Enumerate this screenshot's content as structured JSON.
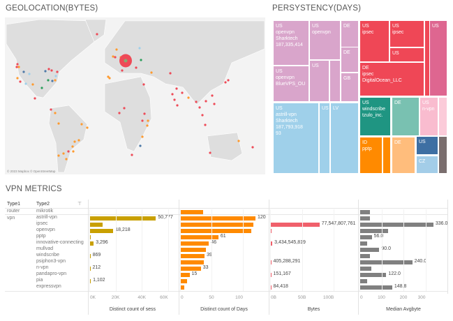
{
  "geolocation": {
    "title": "GEOLOCATION(BYTES)",
    "attribution": "© 2023 Mapbox © OpenStreetMap",
    "colors": {
      "land": "#dedede",
      "water": "#f3f3f3",
      "highlight": "#ee4a57"
    }
  },
  "persistency": {
    "title": "PERSYSTENCY(DAYS)",
    "cells": [
      {
        "label": "US\nopenvpn\nSharktech\n187,335,414",
        "color": "#d9a5cb"
      },
      {
        "label": "US\nopenvpn",
        "color": "#d9a5cb"
      },
      {
        "label": "DE",
        "color": "#d9a5cb"
      },
      {
        "label": "DE",
        "color": "#d9a5cb"
      },
      {
        "label": "GB",
        "color": "#d9a5cb"
      },
      {
        "label": "US\nopenvpn\nBlueVPS_OU",
        "color": "#d9a5cb"
      },
      {
        "label": "US",
        "color": "#d9a5cb"
      },
      {
        "label": "",
        "color": "#d9a5cb"
      },
      {
        "label": "US\nastrill-vpn\nSharktech\n187,793,918\n93",
        "color": "#9fd0ea"
      },
      {
        "label": "US",
        "color": "#9fd0ea"
      },
      {
        "label": "LV",
        "color": "#9fd0ea"
      },
      {
        "label": "US\nipsec",
        "color": "#ef4756"
      },
      {
        "label": "US\nipsec",
        "color": "#ef4756"
      },
      {
        "label": "US",
        "color": "#ef4756"
      },
      {
        "label": "DE\nipsec\nDigitalOcean_LLC",
        "color": "#ef4756"
      },
      {
        "label": "",
        "color": "#ef4756"
      },
      {
        "label": "US",
        "color": "#de6690"
      },
      {
        "label": "US\nwindscribe\ntzulo_inc.",
        "color": "#1f9582"
      },
      {
        "label": "DE",
        "color": "#79c1b1"
      },
      {
        "label": "US\nn-vpn",
        "color": "#f9bccf"
      },
      {
        "label": "",
        "color": "#fbcbd9"
      },
      {
        "label": "ID\npptp",
        "color": "#ff8a00"
      },
      {
        "label": "",
        "color": "#ff8a00"
      },
      {
        "label": "DE",
        "color": "#ffbd7c"
      },
      {
        "label": "US",
        "color": "#3e6fa3"
      },
      {
        "label": "CZ",
        "color": "#a3cde8"
      },
      {
        "label": "",
        "color": "#7a6e6e"
      }
    ]
  },
  "vpn_metrics": {
    "title": "VPN METRICS",
    "headers": {
      "type1": "Type1",
      "type2": "Type2"
    },
    "type1_groups": [
      "router",
      "vpn"
    ],
    "rows": [
      {
        "type2": "mikrotik",
        "sess": null,
        "sess_label": null,
        "days": 37,
        "days_label": null,
        "bytes": null,
        "bytes_label": null,
        "median": 48,
        "median_label": null
      },
      {
        "type2": "astrill-vpn",
        "sess": 50777,
        "sess_label": "50,777",
        "days": 120,
        "days_label": "120",
        "bytes": null,
        "bytes_label": null,
        "median": 48,
        "median_label": null
      },
      {
        "type2": "ipsec",
        "sess": 10000,
        "sess_label": null,
        "days": 117,
        "days_label": null,
        "bytes": 77.547807761,
        "bytes_label": "77,547,807,761",
        "median": 336.0,
        "median_label": "336.0"
      },
      {
        "type2": "openvpn",
        "sess": 18218,
        "sess_label": "18,218",
        "days": 113,
        "days_label": null,
        "bytes": 0.3,
        "bytes_label": null,
        "median": 130,
        "median_label": null
      },
      {
        "type2": "pptp",
        "sess": 300,
        "sess_label": null,
        "days": 61,
        "days_label": "61",
        "bytes": null,
        "bytes_label": null,
        "median": 56.0,
        "median_label": "56.0"
      },
      {
        "type2": "innovative-connecting",
        "sess": 3296,
        "sess_label": "3,296",
        "days": 46,
        "days_label": "46",
        "bytes": 3.434545819,
        "bytes_label": "3,434,545,819",
        "median": 36,
        "median_label": null
      },
      {
        "type2": "mullvad",
        "sess": null,
        "sess_label": null,
        "days": 41,
        "days_label": null,
        "bytes": null,
        "bytes_label": null,
        "median": 90.0,
        "median_label": "90.0"
      },
      {
        "type2": "windscribe",
        "sess": 869,
        "sess_label": "869",
        "days": 39,
        "days_label": "39",
        "bytes": null,
        "bytes_label": null,
        "median": 48,
        "median_label": null
      },
      {
        "type2": "psiphon3-vpn",
        "sess": null,
        "sess_label": null,
        "days": 38,
        "days_label": null,
        "bytes": 0.405288291,
        "bytes_label": "405,288,291",
        "median": 240.0,
        "median_label": "240.0"
      },
      {
        "type2": "n-vpn",
        "sess": 212,
        "sess_label": "212",
        "days": 33,
        "days_label": "33",
        "bytes": null,
        "bytes_label": null,
        "median": 55,
        "median_label": null
      },
      {
        "type2": "pandapro-vpn",
        "sess": null,
        "sess_label": null,
        "days": 15,
        "days_label": "15",
        "bytes": 0.000151167,
        "bytes_label": "151,167",
        "median": 122.0,
        "median_label": "122.0"
      },
      {
        "type2": "pia",
        "sess": 1102,
        "sess_label": "1,102",
        "days": 11,
        "days_label": null,
        "bytes": null,
        "bytes_label": null,
        "median": 36,
        "median_label": null
      },
      {
        "type2": "expressvpn",
        "sess": null,
        "sess_label": null,
        "days": 7,
        "days_label": null,
        "bytes": 8.4418e-05,
        "bytes_label": "84,418",
        "median": 148.8,
        "median_label": "148.8"
      }
    ],
    "panes": [
      {
        "key": "sess",
        "title": "Distinct count of sess",
        "ticks": [
          "0K",
          "20K",
          "40K",
          "60K"
        ],
        "tick_values": [
          0,
          20000,
          40000,
          60000
        ],
        "color": "#c9a000"
      },
      {
        "key": "days",
        "title": "Distinct count of Days",
        "ticks": [
          "0",
          "50",
          "100"
        ],
        "tick_values": [
          0,
          50,
          100
        ],
        "color": "#ff8a00"
      },
      {
        "key": "bytes",
        "title": "Bytes",
        "ticks": [
          "0B",
          "50B",
          "100B"
        ],
        "tick_values": [
          0,
          50,
          100
        ],
        "color": "#f0606b"
      },
      {
        "key": "median",
        "title": "Median Avgbyte",
        "ticks": [
          "0",
          "100",
          "200",
          "300"
        ],
        "tick_values": [
          0,
          100,
          200,
          300
        ],
        "color": "#808080"
      }
    ]
  }
}
